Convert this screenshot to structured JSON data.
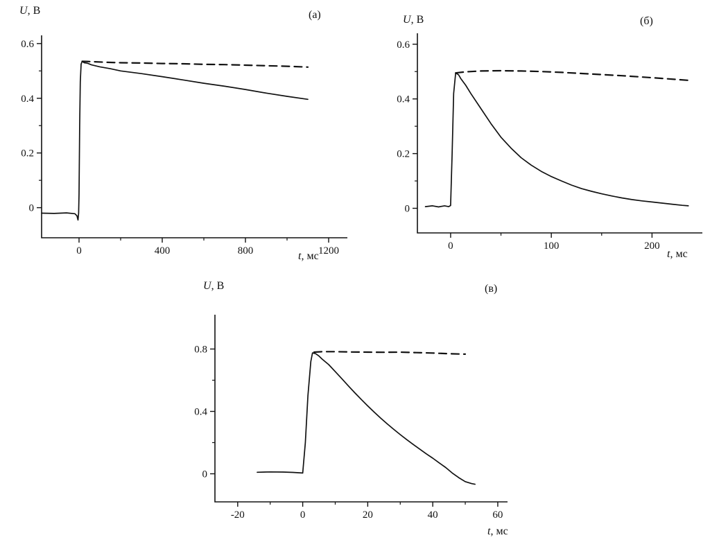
{
  "figure": {
    "background": "#ffffff",
    "line_color": "#111111"
  },
  "chart_data": [
    {
      "id": "a",
      "type": "line",
      "panel_label": "(a)",
      "ylabel_var": "U",
      "ylabel_unit": ", В",
      "xlabel_var": "t",
      "xlabel_unit": ", мс",
      "xlim": [
        -180,
        1290
      ],
      "ylim": [
        -0.11,
        0.63
      ],
      "xticks": [
        0,
        400,
        800,
        1200
      ],
      "yticks": [
        0,
        0.2,
        0.4,
        0.6
      ],
      "grid": false,
      "legend": "none",
      "series": [
        {
          "name": "signal-solid",
          "style": "solid",
          "points": [
            [
              -180,
              -0.02
            ],
            [
              -120,
              -0.021
            ],
            [
              -60,
              -0.019
            ],
            [
              -20,
              -0.022
            ],
            [
              -10,
              -0.03
            ],
            [
              -5,
              -0.045
            ],
            [
              -2,
              -0.02
            ],
            [
              0,
              0.05
            ],
            [
              3,
              0.3
            ],
            [
              6,
              0.46
            ],
            [
              10,
              0.525
            ],
            [
              15,
              0.535
            ],
            [
              25,
              0.53
            ],
            [
              40,
              0.528
            ],
            [
              60,
              0.522
            ],
            [
              100,
              0.515
            ],
            [
              150,
              0.508
            ],
            [
              200,
              0.5
            ],
            [
              300,
              0.49
            ],
            [
              400,
              0.479
            ],
            [
              500,
              0.467
            ],
            [
              600,
              0.455
            ],
            [
              700,
              0.444
            ],
            [
              800,
              0.432
            ],
            [
              900,
              0.419
            ],
            [
              1000,
              0.407
            ],
            [
              1100,
              0.396
            ]
          ]
        },
        {
          "name": "reference-dashed",
          "style": "dashed",
          "points": [
            [
              15,
              0.535
            ],
            [
              60,
              0.534
            ],
            [
              120,
              0.532
            ],
            [
              200,
              0.53
            ],
            [
              300,
              0.529
            ],
            [
              400,
              0.527
            ],
            [
              500,
              0.526
            ],
            [
              600,
              0.524
            ],
            [
              700,
              0.523
            ],
            [
              800,
              0.521
            ],
            [
              900,
              0.519
            ],
            [
              1000,
              0.517
            ],
            [
              1100,
              0.514
            ]
          ]
        }
      ]
    },
    {
      "id": "b",
      "type": "line",
      "panel_label": "(б)",
      "ylabel_var": "U",
      "ylabel_unit": ", В",
      "xlabel_var": "t",
      "xlabel_unit": ", мс",
      "xlim": [
        -33,
        250
      ],
      "ylim": [
        -0.09,
        0.64
      ],
      "xticks": [
        0,
        100,
        200
      ],
      "yticks": [
        0,
        0.2,
        0.4,
        0.6
      ],
      "grid": false,
      "legend": "none",
      "series": [
        {
          "name": "signal-solid",
          "style": "solid",
          "points": [
            [
              -25,
              0.006
            ],
            [
              -18,
              0.009
            ],
            [
              -12,
              0.005
            ],
            [
              -6,
              0.009
            ],
            [
              -2,
              0.006
            ],
            [
              0,
              0.01
            ],
            [
              1.5,
              0.2
            ],
            [
              3,
              0.42
            ],
            [
              5,
              0.495
            ],
            [
              8,
              0.488
            ],
            [
              10,
              0.475
            ],
            [
              15,
              0.45
            ],
            [
              20,
              0.42
            ],
            [
              30,
              0.365
            ],
            [
              40,
              0.31
            ],
            [
              50,
              0.26
            ],
            [
              60,
              0.22
            ],
            [
              70,
              0.185
            ],
            [
              80,
              0.158
            ],
            [
              90,
              0.135
            ],
            [
              100,
              0.116
            ],
            [
              110,
              0.1
            ],
            [
              120,
              0.085
            ],
            [
              130,
              0.072
            ],
            [
              140,
              0.062
            ],
            [
              150,
              0.053
            ],
            [
              160,
              0.045
            ],
            [
              170,
              0.038
            ],
            [
              180,
              0.032
            ],
            [
              190,
              0.027
            ],
            [
              200,
              0.023
            ],
            [
              210,
              0.019
            ],
            [
              220,
              0.015
            ],
            [
              230,
              0.011
            ],
            [
              236,
              0.009
            ]
          ]
        },
        {
          "name": "reference-dashed",
          "style": "dashed",
          "points": [
            [
              5,
              0.495
            ],
            [
              15,
              0.499
            ],
            [
              30,
              0.502
            ],
            [
              50,
              0.503
            ],
            [
              70,
              0.502
            ],
            [
              90,
              0.5
            ],
            [
              110,
              0.497
            ],
            [
              130,
              0.493
            ],
            [
              150,
              0.489
            ],
            [
              170,
              0.485
            ],
            [
              190,
              0.48
            ],
            [
              210,
              0.475
            ],
            [
              225,
              0.471
            ],
            [
              236,
              0.468
            ]
          ]
        }
      ]
    },
    {
      "id": "v",
      "type": "line",
      "panel_label": "(в)",
      "ylabel_var": "U",
      "ylabel_unit": ", В",
      "xlabel_var": "t",
      "xlabel_unit": ", мс",
      "xlim": [
        -27,
        63
      ],
      "ylim": [
        -0.18,
        1.02
      ],
      "xticks": [
        -20,
        0,
        20,
        40,
        60
      ],
      "yticks": [
        0,
        0.4,
        0.8
      ],
      "grid": false,
      "legend": "none",
      "series": [
        {
          "name": "signal-solid",
          "style": "solid",
          "points": [
            [
              -14,
              0.01
            ],
            [
              -10,
              0.012
            ],
            [
              -6,
              0.011
            ],
            [
              -3,
              0.009
            ],
            [
              0,
              0.005
            ],
            [
              0.8,
              0.2
            ],
            [
              1.6,
              0.5
            ],
            [
              2.5,
              0.72
            ],
            [
              3,
              0.775
            ],
            [
              4,
              0.77
            ],
            [
              5,
              0.755
            ],
            [
              6,
              0.735
            ],
            [
              8,
              0.7
            ],
            [
              10,
              0.655
            ],
            [
              12,
              0.61
            ],
            [
              14,
              0.565
            ],
            [
              16,
              0.52
            ],
            [
              18,
              0.477
            ],
            [
              20,
              0.435
            ],
            [
              22,
              0.395
            ],
            [
              24,
              0.357
            ],
            [
              26,
              0.32
            ],
            [
              28,
              0.285
            ],
            [
              30,
              0.251
            ],
            [
              32,
              0.219
            ],
            [
              34,
              0.188
            ],
            [
              36,
              0.158
            ],
            [
              38,
              0.128
            ],
            [
              40,
              0.1
            ],
            [
              42,
              0.07
            ],
            [
              44,
              0.04
            ],
            [
              46,
              0.005
            ],
            [
              48,
              -0.025
            ],
            [
              50,
              -0.05
            ],
            [
              52,
              -0.063
            ],
            [
              53,
              -0.067
            ]
          ]
        },
        {
          "name": "reference-dashed",
          "style": "dashed",
          "points": [
            [
              3.5,
              0.78
            ],
            [
              6,
              0.783
            ],
            [
              10,
              0.783
            ],
            [
              15,
              0.781
            ],
            [
              20,
              0.78
            ],
            [
              25,
              0.779
            ],
            [
              30,
              0.78
            ],
            [
              35,
              0.777
            ],
            [
              40,
              0.774
            ],
            [
              45,
              0.77
            ],
            [
              50,
              0.767
            ]
          ]
        }
      ]
    }
  ]
}
